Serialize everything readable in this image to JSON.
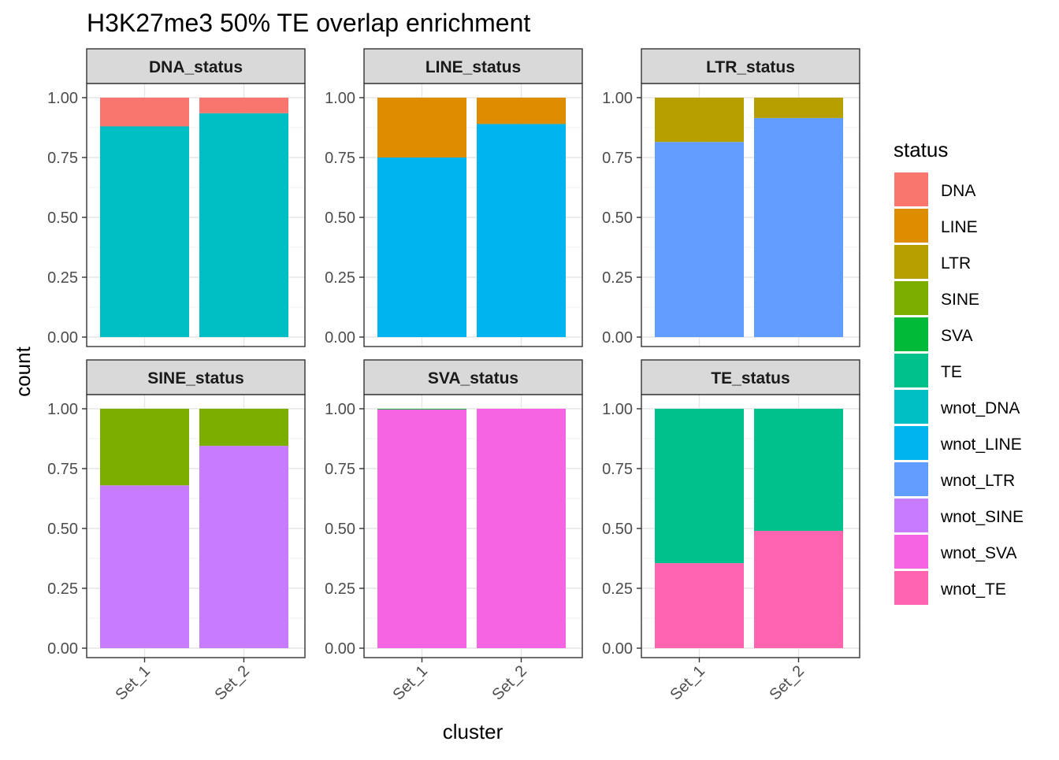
{
  "chart_data": {
    "type": "bar",
    "title": "H3K27me3 50% TE overlap enrichment",
    "xlabel": "cluster",
    "ylabel": "count",
    "categories": [
      "Set_1",
      "Set_2"
    ],
    "ylim": [
      0,
      1
    ],
    "y_ticks": [
      "0.00",
      "0.25",
      "0.50",
      "0.75",
      "1.00"
    ],
    "grid": true,
    "legend": {
      "title": "status",
      "placement": "right",
      "entries": [
        {
          "label": "DNA",
          "color": "#F8766D"
        },
        {
          "label": "LINE",
          "color": "#DE8C00"
        },
        {
          "label": "LTR",
          "color": "#B79F00"
        },
        {
          "label": "SINE",
          "color": "#7CAE00"
        },
        {
          "label": "SVA",
          "color": "#00BA38"
        },
        {
          "label": "TE",
          "color": "#00C08B"
        },
        {
          "label": "wnot_DNA",
          "color": "#00BFC4"
        },
        {
          "label": "wnot_LINE",
          "color": "#00B4F0"
        },
        {
          "label": "wnot_LTR",
          "color": "#619CFF"
        },
        {
          "label": "wnot_SINE",
          "color": "#C77CFF"
        },
        {
          "label": "wnot_SVA",
          "color": "#F564E3"
        },
        {
          "label": "wnot_TE",
          "color": "#FF64B0"
        }
      ]
    },
    "facets": [
      {
        "strip": "DNA_status",
        "series": [
          {
            "name": "wnot_DNA",
            "color": "#00BFC4",
            "values": [
              0.88,
              0.935
            ]
          },
          {
            "name": "DNA",
            "color": "#F8766D",
            "values": [
              0.12,
              0.065
            ]
          }
        ]
      },
      {
        "strip": "LINE_status",
        "series": [
          {
            "name": "wnot_LINE",
            "color": "#00B4F0",
            "values": [
              0.75,
              0.89
            ]
          },
          {
            "name": "LINE",
            "color": "#DE8C00",
            "values": [
              0.25,
              0.11
            ]
          }
        ]
      },
      {
        "strip": "LTR_status",
        "series": [
          {
            "name": "wnot_LTR",
            "color": "#619CFF",
            "values": [
              0.815,
              0.915
            ]
          },
          {
            "name": "LTR",
            "color": "#B79F00",
            "values": [
              0.185,
              0.085
            ]
          }
        ]
      },
      {
        "strip": "SINE_status",
        "series": [
          {
            "name": "wnot_SINE",
            "color": "#C77CFF",
            "values": [
              0.68,
              0.845
            ]
          },
          {
            "name": "SINE",
            "color": "#7CAE00",
            "values": [
              0.32,
              0.155
            ]
          }
        ]
      },
      {
        "strip": "SVA_status",
        "series": [
          {
            "name": "wnot_SVA",
            "color": "#F564E3",
            "values": [
              0.997,
              1.0
            ]
          },
          {
            "name": "SVA",
            "color": "#00BA38",
            "values": [
              0.003,
              0.0
            ]
          }
        ]
      },
      {
        "strip": "TE_status",
        "series": [
          {
            "name": "wnot_TE",
            "color": "#FF64B0",
            "values": [
              0.355,
              0.49
            ]
          },
          {
            "name": "TE",
            "color": "#00C08B",
            "values": [
              0.645,
              0.51
            ]
          }
        ]
      }
    ]
  }
}
